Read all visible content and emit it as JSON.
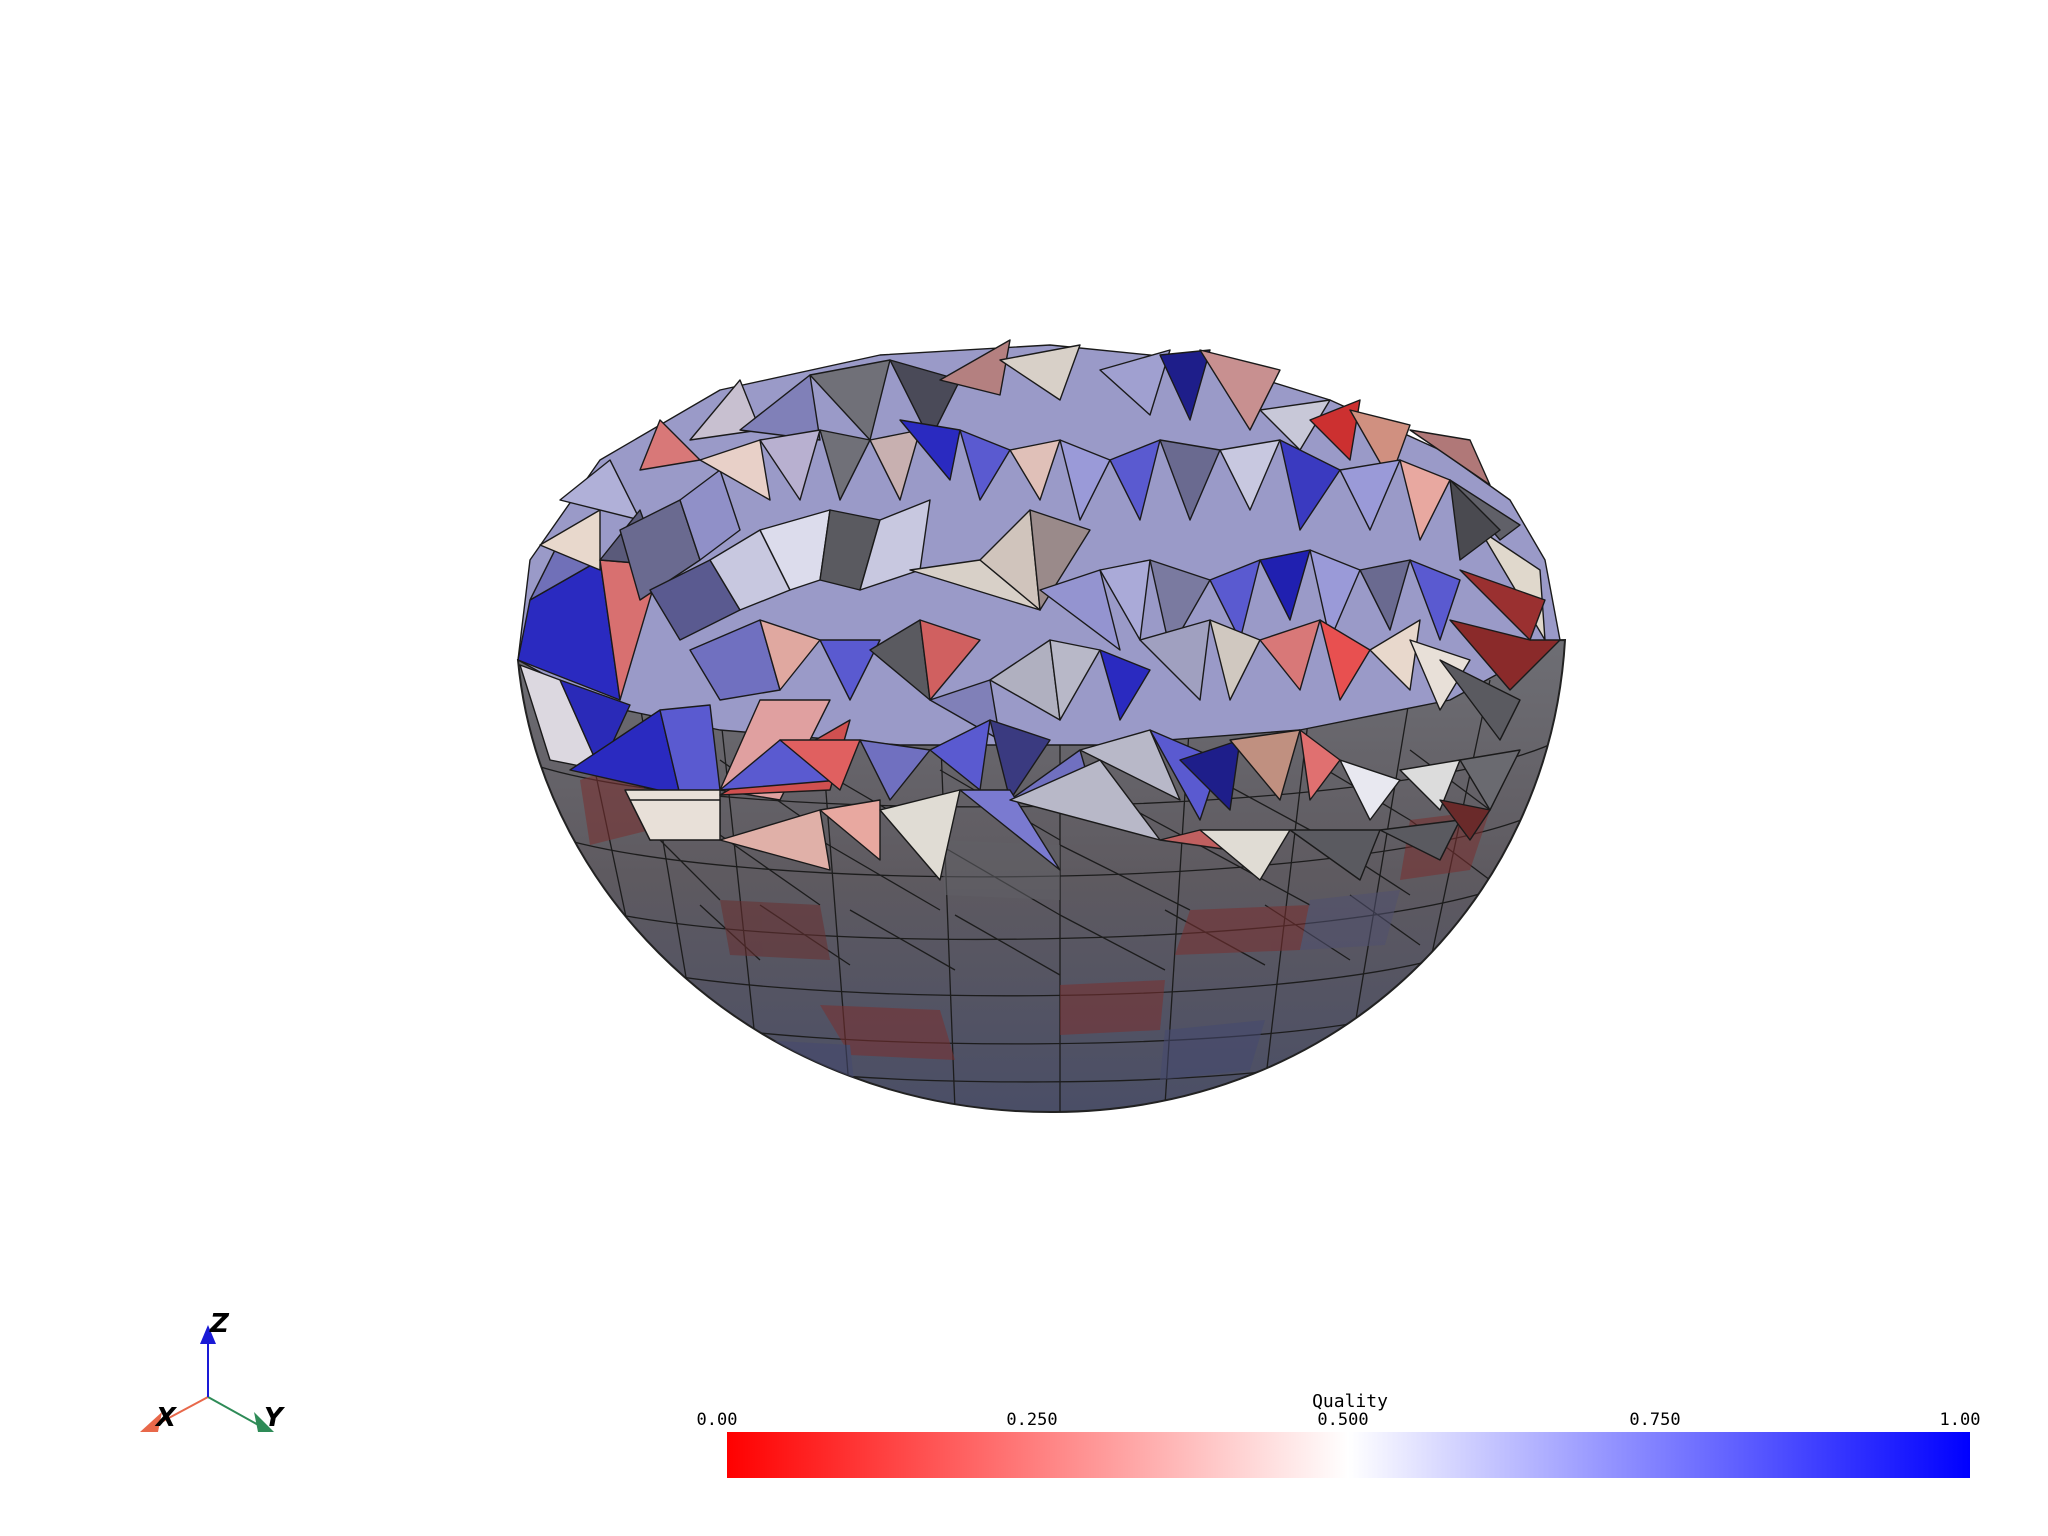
{
  "scalar_bar": {
    "title": "Quality",
    "ticks": [
      "0.00",
      "0.250",
      "0.500",
      "0.750",
      "1.00"
    ],
    "range": [
      0,
      1
    ],
    "colormap": {
      "low": "#ff0000",
      "mid": "#ffffff",
      "high": "#0000ff"
    }
  },
  "axes_widget": {
    "x_label": "X",
    "y_label": "Y",
    "z_label": "Z",
    "x_color": "#e8684a",
    "y_color": "#2e8b57",
    "z_color": "#1a1ad6"
  },
  "mesh": {
    "description_colors": [
      "#2a2ac0",
      "#5a5ad0",
      "#9a9ad8",
      "#c8c8e0",
      "#e8e0d8",
      "#e0a8a0",
      "#d87070",
      "#8a2a2a",
      "#707078",
      "#4a4a50"
    ]
  }
}
